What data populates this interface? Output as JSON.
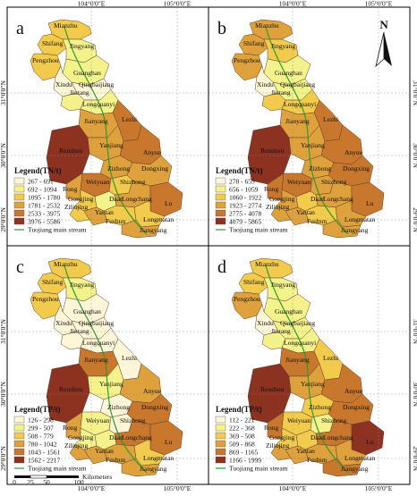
{
  "colors": {
    "background": "#ffffff",
    "river": "#2f9a2f",
    "region_outline": "#5a4030"
  },
  "top_ticks": [
    "104°0'0\"E",
    "105°0'0\"E"
  ],
  "bottom_ticks": [
    "104°0'0\"E",
    "105°0'0\"E"
  ],
  "left_ticks": [
    "31°0'0\"N",
    "30°0'0\"N",
    "29°0'0\"N"
  ],
  "right_ticks": [
    "31°0'0\"N",
    "30°0'0\"N",
    "29°0'0\"N"
  ],
  "north_arrow": {
    "label": "N",
    "icon": "north-arrow-icon"
  },
  "scale_bar": {
    "labels": [
      "0",
      "25",
      "50",
      "100"
    ],
    "unit": "Kilometers"
  },
  "region_labels": [
    "Mianzhu",
    "Shifang",
    "Jingyang",
    "Pengzhou",
    "Guanghan",
    "Xindu",
    "Qingbaijiang",
    "Jintang",
    "Longquanyi",
    "Jianyang",
    "Lezhi",
    "Yanjiang",
    "Renshou",
    "Anyue",
    "Zizhong",
    "Dongxing",
    "Weiyuan",
    "Shizhong",
    "Rong",
    "Gongjing",
    "Daan",
    "Longchang",
    "Ziliujing",
    "Yantan",
    "Lu",
    "Fushun",
    "Longmatan",
    "Jiangyang"
  ],
  "panels": [
    {
      "letter": "a",
      "legend_title": "Legend(TN/t)",
      "classes": [
        {
          "label": "267 - 691",
          "color": "#fff6d8"
        },
        {
          "label": "692 - 1094",
          "color": "#f4f28a"
        },
        {
          "label": "1095 - 1780",
          "color": "#f2cb4c"
        },
        {
          "label": "1781 - 2532",
          "color": "#dea13c"
        },
        {
          "label": "2533 - 3975",
          "color": "#c9772c"
        },
        {
          "label": "3976 - 5586",
          "color": "#8d3221"
        }
      ],
      "river_label": "Tuojiang main stream",
      "region_class": [
        2,
        2,
        1,
        2,
        1,
        0,
        0,
        1,
        1,
        3,
        4,
        3,
        5,
        4,
        3,
        3,
        4,
        2,
        3,
        2,
        1,
        3,
        2,
        3,
        4,
        2,
        2,
        3
      ]
    },
    {
      "letter": "b",
      "legend_title": "Legend(TN/t)",
      "classes": [
        {
          "label": "278 - 655",
          "color": "#fff6d8"
        },
        {
          "label": "656 - 1059",
          "color": "#f4f28a"
        },
        {
          "label": "1060 - 1922",
          "color": "#f2cb4c"
        },
        {
          "label": "1923 - 2774",
          "color": "#dea13c"
        },
        {
          "label": "2775 - 4078",
          "color": "#c9772c"
        },
        {
          "label": "4079 - 5865",
          "color": "#8d3221"
        }
      ],
      "river_label": "Tuojiang main stream",
      "region_class": [
        3,
        3,
        2,
        3,
        1,
        0,
        1,
        2,
        2,
        3,
        4,
        3,
        5,
        4,
        3,
        4,
        4,
        3,
        4,
        3,
        2,
        3,
        3,
        3,
        4,
        2,
        3,
        3
      ]
    },
    {
      "letter": "c",
      "legend_title": "Legend(TP/t)",
      "classes": [
        {
          "label": "126 - 298",
          "color": "#fff6d8"
        },
        {
          "label": "299 - 507",
          "color": "#f4f28a"
        },
        {
          "label": "508 - 779",
          "color": "#f2cb4c"
        },
        {
          "label": "780 - 1042",
          "color": "#dea13c"
        },
        {
          "label": "1043 - 1561",
          "color": "#c9772c"
        },
        {
          "label": "1562 - 2217",
          "color": "#8d3221"
        }
      ],
      "river_label": "Tuojiang main stream",
      "region_class": [
        2,
        2,
        1,
        2,
        0,
        0,
        0,
        0,
        0,
        4,
        0,
        1,
        5,
        3,
        0,
        4,
        1,
        0,
        3,
        1,
        1,
        4,
        3,
        3,
        4,
        3,
        2,
        3
      ]
    },
    {
      "letter": "d",
      "legend_title": "Legend(TP/t)",
      "classes": [
        {
          "label": "112 - 221",
          "color": "#fff6d8"
        },
        {
          "label": "222 - 368",
          "color": "#f4f28a"
        },
        {
          "label": "369 - 508",
          "color": "#f2cb4c"
        },
        {
          "label": "509 - 868",
          "color": "#dea13c"
        },
        {
          "label": "869 - 1165",
          "color": "#c9772c"
        },
        {
          "label": "1166 - 1999",
          "color": "#8d3221"
        }
      ],
      "river_label": "Tuojiang main stream",
      "region_class": [
        2,
        2,
        1,
        3,
        1,
        0,
        1,
        1,
        1,
        4,
        2,
        3,
        5,
        4,
        2,
        4,
        2,
        1,
        4,
        2,
        2,
        4,
        3,
        3,
        5,
        3,
        3,
        4
      ]
    }
  ]
}
